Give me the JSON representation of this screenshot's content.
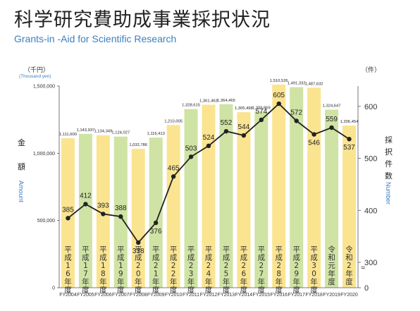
{
  "title": "科学研究費助成事業採択状況",
  "subtitle": "Grants-in -Aid for Scientific Research",
  "colors": {
    "bar_yellow": "#fbe490",
    "bar_green": "#cfe3a4",
    "line": "#222222",
    "accent_blue": "#3a7fc1"
  },
  "chart_data": {
    "type": "bar",
    "categories": [
      "FY2004",
      "FY2005",
      "FY2006",
      "FY2007",
      "FY2008",
      "FY2009",
      "FY2010",
      "FY2011",
      "FY2012",
      "FY2013",
      "FY2014",
      "FY2015",
      "FY2016",
      "FY2017",
      "FY2018",
      "FY2019",
      "FY2020"
    ],
    "era_labels": [
      "平成16年度",
      "平成17年度",
      "平成18年度",
      "平成19年度",
      "平成20年度",
      "平成21年度",
      "平成22年度",
      "平成23年度",
      "平成24年度",
      "平成25年度",
      "平成26年度",
      "平成27年度",
      "平成28年度",
      "平成29年度",
      "平成30年度",
      "令和元年度",
      "令和2年度"
    ],
    "bar_colors": [
      "yellow",
      "green",
      "yellow",
      "green",
      "yellow",
      "green",
      "yellow",
      "green",
      "yellow",
      "green",
      "yellow",
      "green",
      "yellow",
      "green",
      "yellow",
      "green",
      "yellow"
    ],
    "series": [
      {
        "name": "Amount",
        "values": [
          1111600,
          1143937,
          1134349,
          1124027,
          1032786,
          1116413,
          1210005,
          1328615,
          1361463,
          1364465,
          1305498,
          1309869,
          1510526,
          1491332,
          1487632,
          1324647,
          1206454
        ],
        "labels": [
          "1,111,600",
          "1,143,937",
          "1,134,349",
          "1,124,027",
          "1,032,786",
          "1,116,413",
          "1,210,005",
          "1,328,615",
          "1,361,463",
          "1,364,465",
          "1,305,498",
          "1,309,869",
          "1,510,526",
          "1,491,332",
          "1,487,632",
          "1,324,647",
          "1,206,454"
        ]
      },
      {
        "name": "Number",
        "values": [
          385,
          412,
          393,
          388,
          338,
          376,
          465,
          503,
          524,
          552,
          544,
          574,
          605,
          572,
          546,
          559,
          537
        ],
        "labels": [
          "385",
          "412",
          "393",
          "388",
          "338",
          "376",
          "465",
          "503",
          "524",
          "552",
          "544",
          "574",
          "605",
          "572",
          "546",
          "559",
          "537"
        ]
      }
    ],
    "left_axis": {
      "unit_jp": "（千円）",
      "unit_en": "(Thousand yen)",
      "label_jp_1": "金",
      "label_jp_2": "額",
      "label_en": "Amount",
      "min": 0,
      "max": 1500000,
      "ticks": [
        0,
        500000,
        1000000,
        1500000
      ],
      "tick_labels": [
        "0",
        "500,000",
        "1,000,000",
        "1,500,000"
      ]
    },
    "right_axis": {
      "unit_jp": "（件）",
      "label_jp": "採択件数",
      "label_en": "Number",
      "break_symbol": "≈",
      "ticks": [
        0,
        300,
        400,
        500,
        600
      ],
      "tick_labels": [
        "0",
        "300",
        "400",
        "500",
        "600"
      ]
    },
    "grid": false
  }
}
